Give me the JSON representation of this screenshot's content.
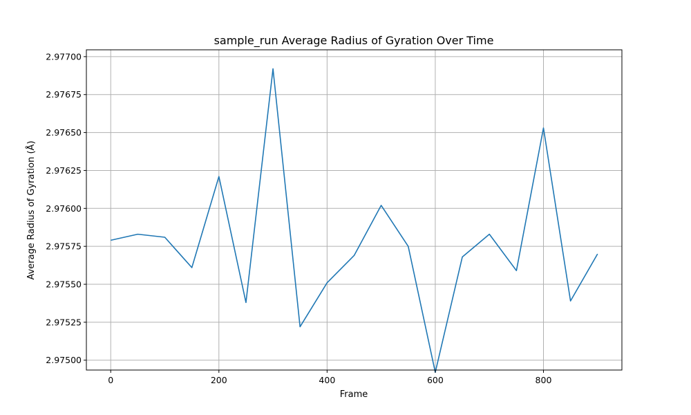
{
  "chart_data": {
    "type": "line",
    "title": "sample_run Average Radius of Gyration Over Time",
    "xlabel": "Frame",
    "ylabel": "Average Radius of Gyration (Å)",
    "xlim": [
      -45,
      945
    ],
    "ylim": [
      2.974935,
      2.977045
    ],
    "xticks": [
      0,
      200,
      400,
      600,
      800
    ],
    "xtick_labels": [
      "0",
      "200",
      "400",
      "600",
      "800"
    ],
    "yticks": [
      2.975,
      2.97525,
      2.9755,
      2.97575,
      2.976,
      2.97625,
      2.9765,
      2.97675,
      2.977
    ],
    "ytick_labels": [
      "2.97500",
      "2.97525",
      "2.97550",
      "2.97575",
      "2.97600",
      "2.97625",
      "2.97650",
      "2.97675",
      "2.97700"
    ],
    "grid": true,
    "line_color": "#1f77b4",
    "series": [
      {
        "x": [
          0,
          50,
          100,
          150,
          200,
          250,
          300,
          350,
          400,
          450,
          500,
          550,
          600,
          650,
          700,
          750,
          800,
          850,
          900
        ],
        "values": [
          2.97579,
          2.97583,
          2.97581,
          2.97561,
          2.97621,
          2.97538,
          2.97692,
          2.97522,
          2.97551,
          2.97569,
          2.97602,
          2.97575,
          2.97492,
          2.97568,
          2.97583,
          2.97559,
          2.97653,
          2.97539,
          2.9757
        ]
      }
    ]
  }
}
